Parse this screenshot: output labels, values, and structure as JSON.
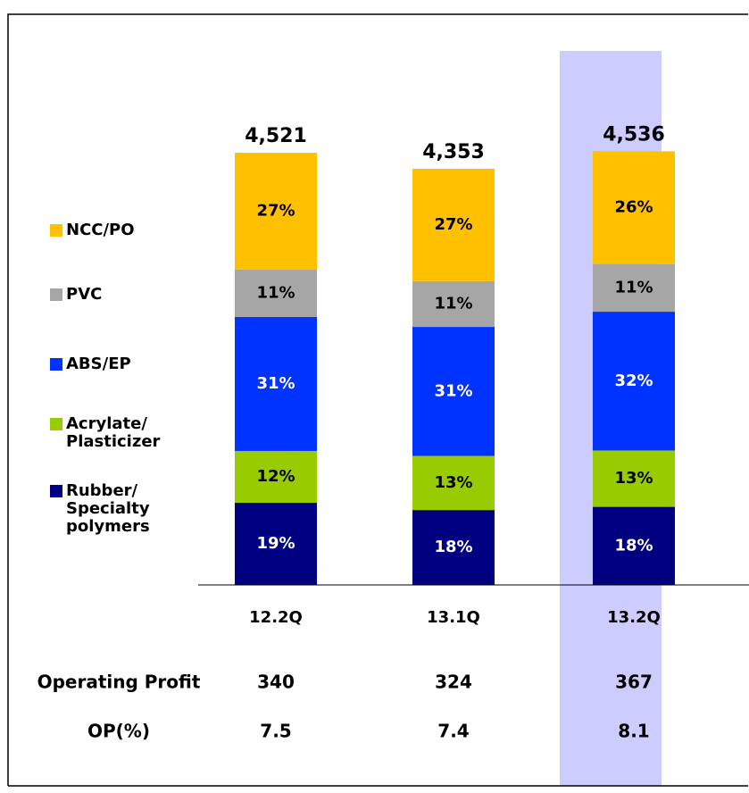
{
  "chart_data": {
    "type": "stacked-bar",
    "categories": [
      "12.2Q",
      "13.1Q",
      "13.2Q"
    ],
    "highlight_index": 2,
    "highlight_color": "#ccccff",
    "totals": {
      "values": [
        4521,
        4353,
        4536
      ],
      "value_labels": [
        "4,521",
        "4,353",
        "4,536"
      ]
    },
    "series": [
      {
        "name": "Rubber/ Specialty polymers",
        "color": "#000080",
        "values": [
          19,
          18,
          18
        ],
        "value_labels": [
          "19%",
          "18%",
          "18%"
        ]
      },
      {
        "name": "Acrylate/ Plasticizer",
        "color": "#99cc00",
        "values": [
          12,
          13,
          13
        ],
        "value_labels": [
          "12%",
          "13%",
          "13%"
        ]
      },
      {
        "name": "ABS/EP",
        "color": "#0033ff",
        "values": [
          31,
          31,
          32
        ],
        "value_labels": [
          "31%",
          "31%",
          "32%"
        ]
      },
      {
        "name": "PVC",
        "color": "#a6a6a6",
        "values": [
          11,
          11,
          11
        ],
        "value_labels": [
          "11%",
          "11%",
          "11%"
        ]
      },
      {
        "name": "NCC/PO",
        "color": "#ffc000",
        "values": [
          27,
          27,
          26
        ],
        "value_labels": [
          "27%",
          "27%",
          "26%"
        ]
      }
    ],
    "rows": [
      {
        "label": "Operating Profit",
        "values": [
          340,
          324,
          367
        ]
      },
      {
        "label": "OP(%)",
        "values": [
          7.5,
          7.4,
          8.1
        ]
      }
    ]
  }
}
